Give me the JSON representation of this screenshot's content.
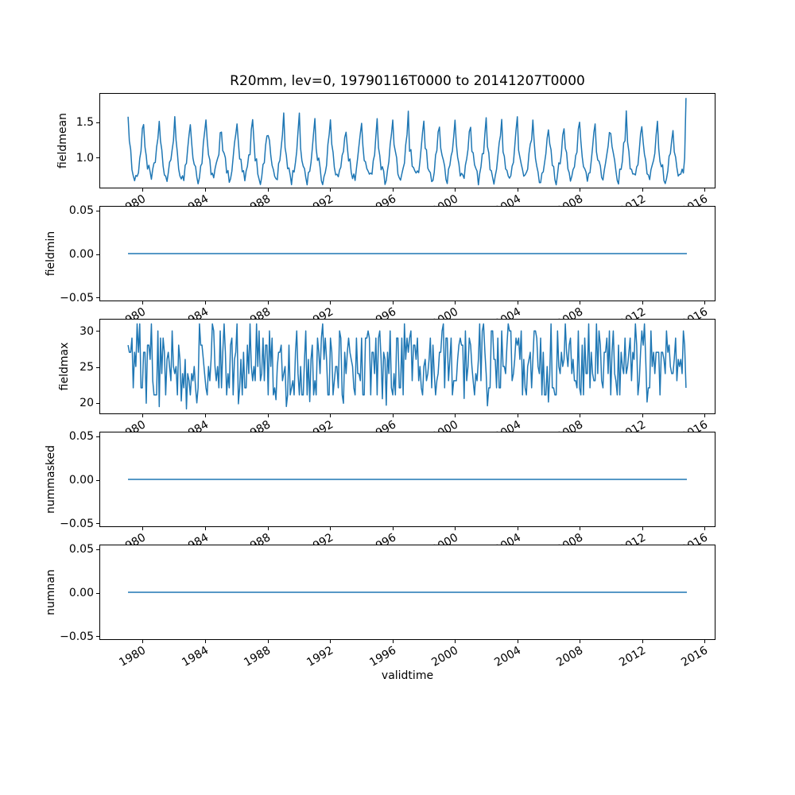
{
  "chart_data": {
    "type": "line",
    "title": "R20mm, lev=0, 19790116T0000 to 20141207T0000",
    "xlabel": "validtime",
    "line_color": "#1f77b4",
    "line_width": 1.5,
    "grid": false,
    "legend": "none",
    "x_is_time": true,
    "x_start_label": "19790116T0000",
    "x_end_label": "20141207T0000",
    "x_start": 1979.04,
    "x_end": 2014.93,
    "xlim": [
      1977.25,
      2016.72
    ],
    "xticks": {
      "values": [
        1980,
        1984,
        1988,
        1992,
        1996,
        2000,
        2004,
        2008,
        2012,
        2016
      ],
      "labels": [
        "1980",
        "1984",
        "1988",
        "1992",
        "1996",
        "2000",
        "2004",
        "2008",
        "2012",
        "2016"
      ],
      "rotation_deg": 30
    },
    "sampling": "monthly",
    "render_seed": 1234,
    "subplots": [
      {
        "name": "fieldmean",
        "ylabel": "fieldmean",
        "ylim": [
          0.56,
          1.91
        ],
        "yticks": {
          "values": [
            1.0,
            1.5
          ],
          "labels": [
            "1.0",
            "1.5"
          ]
        },
        "series": {
          "kind": "seasonal",
          "description": "annual cycle, winter peaks ~1.4-1.7, summer troughs ~0.62-0.85",
          "monthly_climatology": [
            1.42,
            1.16,
            1.02,
            0.9,
            0.8,
            0.72,
            0.68,
            0.74,
            0.84,
            0.97,
            1.12,
            1.32
          ],
          "noise": 0.09,
          "jan_noise": 0.18,
          "value_clamp": [
            0.6,
            1.78
          ],
          "first_value": 1.58,
          "last_value": 1.85
        }
      },
      {
        "name": "fieldmin",
        "ylabel": "fieldmin",
        "ylim": [
          -0.055,
          0.055
        ],
        "yticks": {
          "values": [
            -0.05,
            0.0,
            0.05
          ],
          "labels": [
            "−0.05",
            "0.00",
            "0.05"
          ]
        },
        "series": {
          "kind": "constant",
          "value": 0.0
        }
      },
      {
        "name": "fieldmax",
        "ylabel": "fieldmax",
        "ylim": [
          18.4,
          31.6
        ],
        "yticks": {
          "values": [
            20,
            25,
            30
          ],
          "labels": [
            "20",
            "25",
            "30"
          ]
        },
        "series": {
          "kind": "noise",
          "description": "jagged values mostly integer 21-30, rare spikes to 31 and dips to 19-20",
          "min": 21,
          "max": 30,
          "high_outlier": 31,
          "high_prob": 0.05,
          "low_outlier": 19,
          "low_prob": 0.025
        }
      },
      {
        "name": "nummasked",
        "ylabel": "nummasked",
        "ylim": [
          -0.055,
          0.055
        ],
        "yticks": {
          "values": [
            -0.05,
            0.0,
            0.05
          ],
          "labels": [
            "−0.05",
            "0.00",
            "0.05"
          ]
        },
        "series": {
          "kind": "constant",
          "value": 0.0
        }
      },
      {
        "name": "numnan",
        "ylabel": "numnan",
        "ylim": [
          -0.055,
          0.055
        ],
        "yticks": {
          "values": [
            -0.05,
            0.0,
            0.05
          ],
          "labels": [
            "−0.05",
            "0.00",
            "0.05"
          ]
        },
        "series": {
          "kind": "constant",
          "value": 0.0
        }
      }
    ]
  }
}
